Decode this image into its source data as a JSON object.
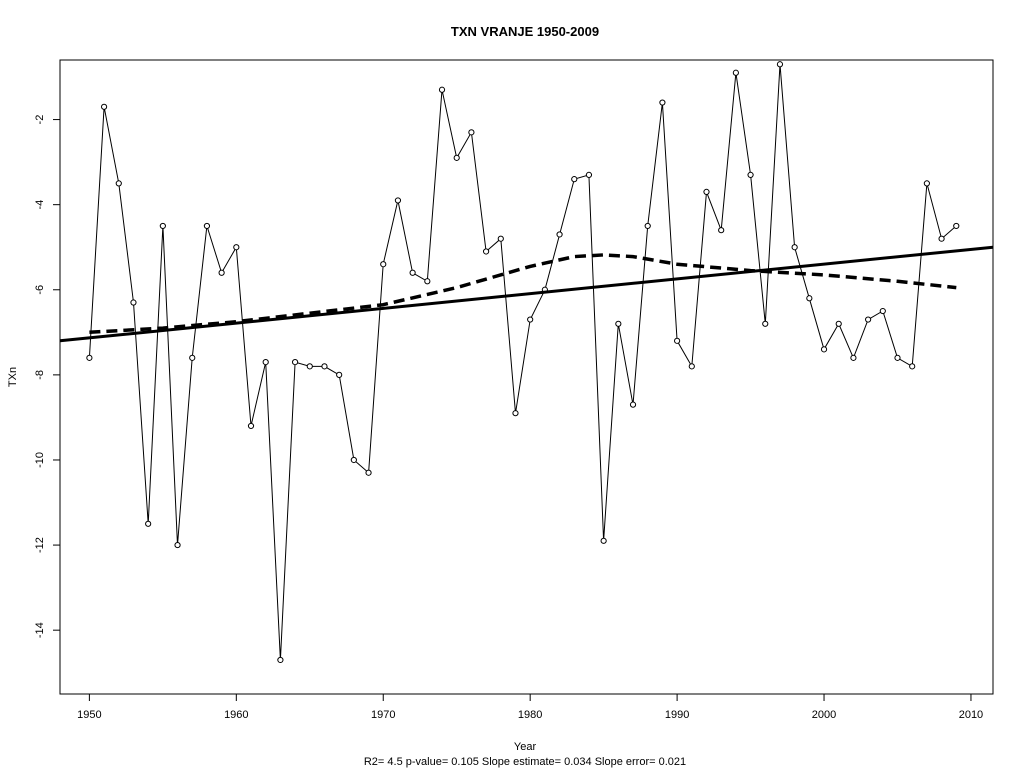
{
  "chart_data": {
    "type": "line",
    "title": "TXN   VRANJE 1950-2009",
    "xlabel": "Year",
    "ylabel": "TXn",
    "subtitle": "R2= 4.5  p-value= 0.105  Slope estimate= 0.034  Slope error= 0.021",
    "xlim": [
      1948,
      2011.5
    ],
    "ylim": [
      -15.5,
      -0.6
    ],
    "x_ticks": [
      1950,
      1960,
      1970,
      1980,
      1990,
      2000,
      2010
    ],
    "y_ticks": [
      -14,
      -12,
      -10,
      -8,
      -6,
      -4,
      -2
    ],
    "grid": false,
    "legend": "none",
    "series": [
      {
        "style": "line-with-open-circles",
        "x": [
          1950,
          1951,
          1952,
          1953,
          1954,
          1955,
          1956,
          1957,
          1958,
          1959,
          1960,
          1961,
          1962,
          1963,
          1964,
          1965,
          1966,
          1967,
          1968,
          1969,
          1970,
          1971,
          1972,
          1973,
          1974,
          1975,
          1976,
          1977,
          1978,
          1979,
          1980,
          1981,
          1982,
          1983,
          1984,
          1985,
          1986,
          1987,
          1988,
          1989,
          1990,
          1991,
          1992,
          1993,
          1994,
          1995,
          1996,
          1997,
          1998,
          1999,
          2000,
          2001,
          2002,
          2003,
          2004,
          2005,
          2006,
          2007,
          2008,
          2009
        ],
        "values": [
          -7.6,
          -1.7,
          -3.5,
          -6.3,
          -11.5,
          -4.5,
          -12.0,
          -7.6,
          -4.5,
          -5.6,
          -5.0,
          -9.2,
          -7.7,
          -14.7,
          -7.7,
          -7.8,
          -7.8,
          -8.0,
          -10.0,
          -10.3,
          -5.4,
          -3.9,
          -5.6,
          -5.8,
          -1.3,
          -2.9,
          -2.3,
          -5.1,
          -4.8,
          -8.9,
          -6.7,
          -6.0,
          -4.7,
          -3.4,
          -3.3,
          -11.9,
          -6.8,
          -8.7,
          -4.5,
          -1.6,
          -7.2,
          -7.8,
          -3.7,
          -4.6,
          -0.9,
          -3.3,
          -6.8,
          -0.7,
          -5.0,
          -6.2,
          -7.4,
          -6.8,
          -7.6,
          -6.7,
          -6.5,
          -7.6,
          -7.8,
          -3.5,
          -4.8,
          -4.5
        ]
      },
      {
        "style": "dashed-smooth",
        "x": [
          1950,
          1955,
          1960,
          1965,
          1970,
          1975,
          1980,
          1983,
          1985,
          1987,
          1990,
          1995,
          2000,
          2005,
          2009
        ],
        "values": [
          -7.0,
          -6.9,
          -6.75,
          -6.55,
          -6.35,
          -5.95,
          -5.45,
          -5.22,
          -5.18,
          -5.22,
          -5.4,
          -5.55,
          -5.65,
          -5.8,
          -5.95
        ]
      },
      {
        "style": "solid-linear",
        "x": [
          1948,
          2011.5
        ],
        "values": [
          -7.2,
          -5.0
        ]
      }
    ]
  }
}
